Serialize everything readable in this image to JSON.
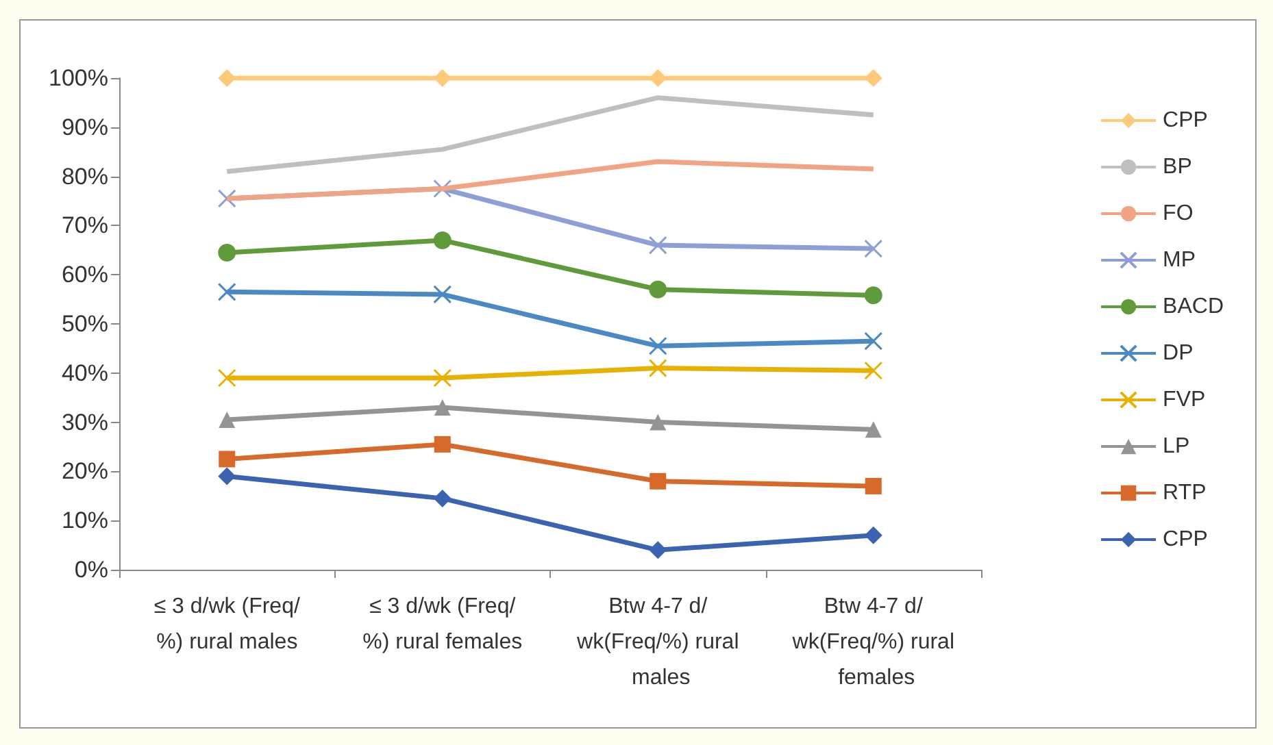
{
  "chart_data": {
    "type": "line",
    "categories": [
      "≤ 3 d/wk (Freq/%) rural males",
      "≤ 3 d/wk (Freq/%) rural females",
      "Btw 4-7 d/wk(Freq/%) rural males",
      "Btw 4-7 d/wk(Freq/%) rural females"
    ],
    "ylim": [
      0,
      100
    ],
    "yticks": [
      {
        "value": 0,
        "label": "0%"
      },
      {
        "value": 10,
        "label": "10%"
      },
      {
        "value": 20,
        "label": "20%"
      },
      {
        "value": 30,
        "label": "30%"
      },
      {
        "value": 40,
        "label": "40%"
      },
      {
        "value": 50,
        "label": "50%"
      },
      {
        "value": 60,
        "label": "60%"
      },
      {
        "value": 70,
        "label": "70%"
      },
      {
        "value": 80,
        "label": "80%"
      },
      {
        "value": 90,
        "label": "90%"
      },
      {
        "value": 100,
        "label": "100%"
      }
    ],
    "grid": false,
    "legend": "right",
    "series": [
      {
        "name": "CPP",
        "color": "#ffc97a",
        "marker": "diamond",
        "values": [
          100,
          100,
          100,
          100
        ]
      },
      {
        "name": "BP",
        "color": "#bfbfbf",
        "marker": "none",
        "values": [
          81,
          85.5,
          96,
          92.5
        ]
      },
      {
        "name": "FO",
        "color": "#f2a383",
        "marker": "none",
        "values": [
          75.5,
          77.5,
          83,
          81.5
        ]
      },
      {
        "name": "MP",
        "color": "#8e9fd6",
        "marker": "cross",
        "values": [
          75.5,
          77.5,
          66,
          65.3
        ]
      },
      {
        "name": "BACD",
        "color": "#5f9b3b",
        "marker": "circle",
        "values": [
          64.5,
          67,
          57,
          55.8
        ]
      },
      {
        "name": "DP",
        "color": "#4a89c4",
        "marker": "cross",
        "values": [
          56.5,
          56,
          45.5,
          46.5
        ]
      },
      {
        "name": "FVP",
        "color": "#e8b100",
        "marker": "cross",
        "values": [
          39,
          39,
          41,
          40.5
        ]
      },
      {
        "name": "LP",
        "color": "#949494",
        "marker": "triangle",
        "values": [
          30.5,
          33,
          30,
          28.5
        ]
      },
      {
        "name": "RTP",
        "color": "#d7692a",
        "marker": "square",
        "values": [
          22.5,
          25.5,
          18,
          17
        ]
      },
      {
        "name": "CPP",
        "color": "#3b63b1",
        "marker": "diamond",
        "values": [
          19,
          14.5,
          4,
          7
        ]
      }
    ]
  }
}
